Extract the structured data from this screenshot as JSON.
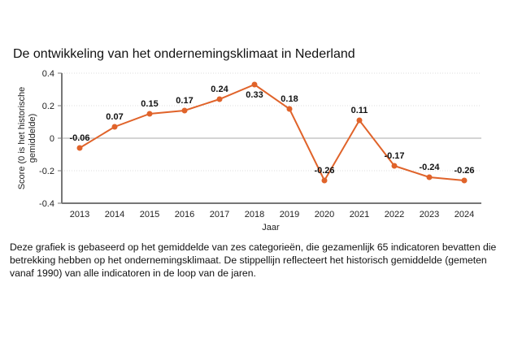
{
  "title": "De ontwikkeling van het ondernemingsklimaat in Nederland",
  "caption": "Deze grafiek is gebaseerd op het gemiddelde van zes categorieën, die gezamenlijk 65 indicatoren bevatten die betrekking hebben op het ondernemingsklimaat. De stippellijn reflecteert het historisch gemiddelde (gemeten vanaf 1990) van alle indicatoren in de loop van de jaren.",
  "colors": {
    "line": "#e0632a",
    "axis": "#777777",
    "grid": "#dddddd",
    "zero": "#aaaaaa"
  },
  "chart_data": {
    "type": "line",
    "title": "De ontwikkeling van het ondernemingsklimaat in Nederland",
    "xlabel": "Jaar",
    "ylabel": "Score (0 is het historische gemiddelde)",
    "ylim": [
      -0.4,
      0.4
    ],
    "yticks": [
      "0.4",
      "0.2",
      "0",
      "-0.2",
      "-0.4"
    ],
    "ytick_values": [
      0.4,
      0.2,
      0,
      -0.2,
      -0.4
    ],
    "grid": true,
    "x": [
      "2013",
      "2014",
      "2015",
      "2016",
      "2017",
      "2018",
      "2019",
      "2020",
      "2021",
      "2022",
      "2023",
      "2024"
    ],
    "series": [
      {
        "name": "Score",
        "values": [
          -0.06,
          0.07,
          0.15,
          0.17,
          0.24,
          0.33,
          0.18,
          -0.26,
          0.11,
          -0.17,
          -0.24,
          -0.26
        ],
        "labels": [
          "-0.06",
          "0.07",
          "0.15",
          "0.17",
          "0.24",
          "0.33",
          "0.18",
          "-0.26",
          "0.11",
          "-0.17",
          "-0.24",
          "-0.26"
        ]
      }
    ]
  }
}
